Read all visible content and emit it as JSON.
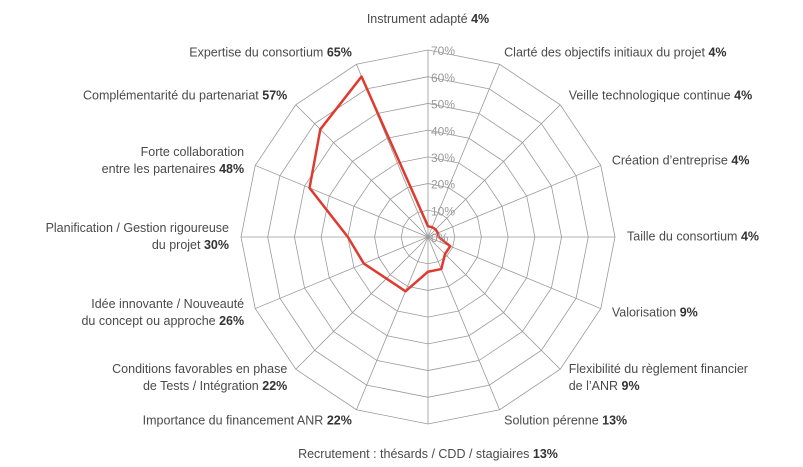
{
  "chart_data": {
    "type": "radar",
    "categories": [
      "Instrument adapté",
      "Clarté des objectifs initiaux du projet",
      "Veille technologique continue",
      "Création d’entreprise",
      "Taille du consortium",
      "Valorisation",
      "Flexibilité du règlement financier\nde l’ANR",
      "Solution pérenne",
      "Recrutement : thésards / CDD / stagiaires",
      "Importance du financement ANR",
      "Conditions favorables en phase\nde Tests / Intégration",
      "Idée innovante / Nouveauté\ndu concept ou approche",
      "Planification / Gestion rigoureuse\ndu projet",
      "Forte collaboration\nentre les partenaires",
      "Complémentarité du partenariat",
      "Expertise du consortium"
    ],
    "series": [
      {
        "color": "#e03a2f",
        "values": [
          4,
          4,
          4,
          4,
          4,
          9,
          9,
          13,
          13,
          22,
          22,
          26,
          30,
          48,
          57,
          65
        ],
        "value_labels": [
          "4%",
          "4%",
          "4%",
          "4%",
          "4%",
          "9%",
          "9%",
          "13%",
          "13%",
          "22%",
          "22%",
          "26%",
          "30%",
          "48%",
          "57%",
          "65%"
        ]
      }
    ],
    "ylim": [
      0,
      70
    ],
    "yticks": [
      {
        "value": 0,
        "label": "0%"
      },
      {
        "value": 10,
        "label": "10%"
      },
      {
        "value": 20,
        "label": "20%"
      },
      {
        "value": 30,
        "label": "30%"
      },
      {
        "value": 40,
        "label": "40%"
      },
      {
        "value": 50,
        "label": "50%"
      },
      {
        "value": 60,
        "label": "60%"
      },
      {
        "value": 70,
        "label": "70%"
      }
    ],
    "grid": true,
    "grid_color": "#9a9a9a"
  }
}
